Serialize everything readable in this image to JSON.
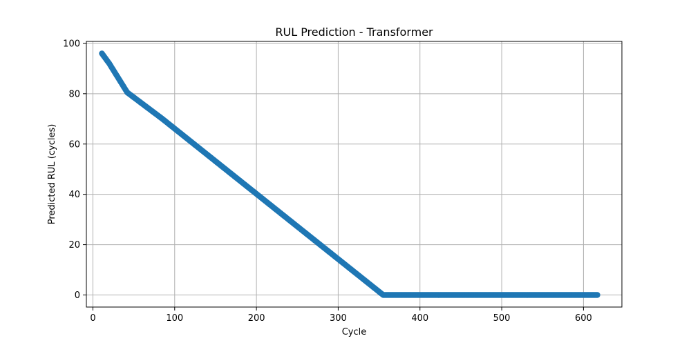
{
  "chart_data": {
    "type": "scatter",
    "title": "RUL Prediction - Transformer",
    "xlabel": "Cycle",
    "ylabel": "Predicted RUL (cycles)",
    "xlim": [
      -8,
      647
    ],
    "ylim": [
      -4.8,
      100.8
    ],
    "xticks": [
      0,
      100,
      200,
      300,
      400,
      500,
      600
    ],
    "yticks": [
      0,
      20,
      40,
      60,
      80,
      100
    ],
    "grid": true,
    "color": "#1f77b4",
    "segments": [
      {
        "x_start": 11,
        "x_end": 20,
        "step": 1,
        "y_start": 96,
        "y_end": 92
      },
      {
        "x_start": 20,
        "x_end": 42,
        "step": 1,
        "y_start": 92,
        "y_end": 80.5
      },
      {
        "x_start": 42,
        "x_end": 85,
        "step": 1,
        "y_start": 80.5,
        "y_end": 70
      },
      {
        "x_start": 85,
        "x_end": 355,
        "step": 1,
        "y_start": 70,
        "y_end": 0
      },
      {
        "x_start": 355,
        "x_end": 617,
        "step": 1,
        "y_start": 0,
        "y_end": 0
      }
    ]
  }
}
